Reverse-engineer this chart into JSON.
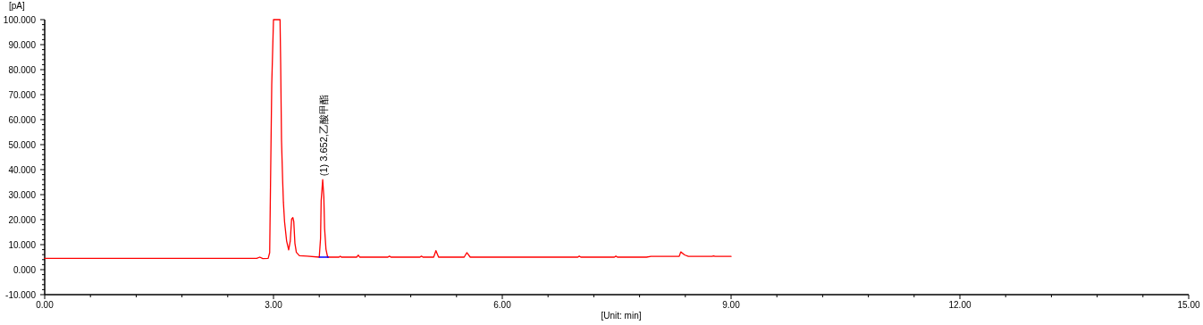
{
  "chart_data": {
    "type": "line",
    "xlabel": "[Unit: min]",
    "ylabel": "[pA]",
    "annotations": [
      {
        "text": "(1) 3.652,乙酸甲酯",
        "x": 3.652,
        "y": 36
      }
    ],
    "xlim": [
      0,
      15
    ],
    "ylim": [
      -10,
      100
    ],
    "xticks": [
      {
        "value": 0,
        "label": "0.00"
      },
      {
        "value": 0.6,
        "label": null
      },
      {
        "value": 1.2,
        "label": null
      },
      {
        "value": 1.8,
        "label": null
      },
      {
        "value": 2.4,
        "label": null
      },
      {
        "value": 3,
        "label": "3.00"
      },
      {
        "value": 3.6,
        "label": null
      },
      {
        "value": 4.2,
        "label": null
      },
      {
        "value": 4.8,
        "label": null
      },
      {
        "value": 5.4,
        "label": null
      },
      {
        "value": 6,
        "label": "6.00"
      },
      {
        "value": 6.6,
        "label": null
      },
      {
        "value": 7.2,
        "label": null
      },
      {
        "value": 7.8,
        "label": null
      },
      {
        "value": 8.4,
        "label": null
      },
      {
        "value": 9,
        "label": "9.00"
      },
      {
        "value": 9.6,
        "label": null
      },
      {
        "value": 10.2,
        "label": null
      },
      {
        "value": 10.8,
        "label": null
      },
      {
        "value": 11.4,
        "label": null
      },
      {
        "value": 12,
        "label": "12.00"
      },
      {
        "value": 12.6,
        "label": null
      },
      {
        "value": 13.2,
        "label": null
      },
      {
        "value": 13.8,
        "label": null
      },
      {
        "value": 14.4,
        "label": null
      },
      {
        "value": 15,
        "label": "15.00"
      }
    ],
    "yticks": [
      {
        "value": -10,
        "label": "-10.000"
      },
      {
        "value": -8,
        "label": null
      },
      {
        "value": -6,
        "label": null
      },
      {
        "value": -4,
        "label": null
      },
      {
        "value": -2,
        "label": null
      },
      {
        "value": 0,
        "label": "0.000"
      },
      {
        "value": 2,
        "label": null
      },
      {
        "value": 4,
        "label": null
      },
      {
        "value": 6,
        "label": null
      },
      {
        "value": 8,
        "label": null
      },
      {
        "value": 10,
        "label": "10.000"
      },
      {
        "value": 12,
        "label": null
      },
      {
        "value": 14,
        "label": null
      },
      {
        "value": 16,
        "label": null
      },
      {
        "value": 18,
        "label": null
      },
      {
        "value": 20,
        "label": "20.000"
      },
      {
        "value": 22,
        "label": null
      },
      {
        "value": 24,
        "label": null
      },
      {
        "value": 26,
        "label": null
      },
      {
        "value": 28,
        "label": null
      },
      {
        "value": 30,
        "label": "30.000"
      },
      {
        "value": 32,
        "label": null
      },
      {
        "value": 34,
        "label": null
      },
      {
        "value": 36,
        "label": null
      },
      {
        "value": 38,
        "label": null
      },
      {
        "value": 40,
        "label": "40.000"
      },
      {
        "value": 42,
        "label": null
      },
      {
        "value": 44,
        "label": null
      },
      {
        "value": 46,
        "label": null
      },
      {
        "value": 48,
        "label": null
      },
      {
        "value": 50,
        "label": "50.000"
      },
      {
        "value": 52,
        "label": null
      },
      {
        "value": 54,
        "label": null
      },
      {
        "value": 56,
        "label": null
      },
      {
        "value": 58,
        "label": null
      },
      {
        "value": 60,
        "label": "60.000"
      },
      {
        "value": 62,
        "label": null
      },
      {
        "value": 64,
        "label": null
      },
      {
        "value": 66,
        "label": null
      },
      {
        "value": 68,
        "label": null
      },
      {
        "value": 70,
        "label": "70.000"
      },
      {
        "value": 72,
        "label": null
      },
      {
        "value": 74,
        "label": null
      },
      {
        "value": 76,
        "label": null
      },
      {
        "value": 78,
        "label": null
      },
      {
        "value": 80,
        "label": "80.000"
      },
      {
        "value": 82,
        "label": null
      },
      {
        "value": 84,
        "label": null
      },
      {
        "value": 86,
        "label": null
      },
      {
        "value": 88,
        "label": null
      },
      {
        "value": 90,
        "label": "90.000"
      },
      {
        "value": 92,
        "label": null
      },
      {
        "value": 94,
        "label": null
      },
      {
        "value": 96,
        "label": null
      },
      {
        "value": 98,
        "label": null
      },
      {
        "value": 100,
        "label": "100.000"
      }
    ],
    "grid": false,
    "marker": "none",
    "line_style": "solid",
    "series": [
      {
        "color": "#ff0000",
        "x": [
          0,
          2.78,
          2.82,
          2.86,
          2.93,
          2.95,
          2.977,
          3.0,
          3.086,
          3.094,
          3.105,
          3.12,
          3.13,
          3.145,
          3.172,
          3.199,
          3.22,
          3.238,
          3.254,
          3.266,
          3.281,
          3.3,
          3.34,
          3.44,
          3.6,
          3.617,
          3.625,
          3.645,
          3.66,
          3.67,
          3.688,
          3.71,
          3.86,
          3.875,
          3.89,
          4.09,
          4.113,
          4.13,
          4.5,
          4.52,
          4.54,
          4.92,
          4.94,
          4.96,
          5.1,
          5.13,
          5.165,
          5.5,
          5.535,
          5.58,
          6.99,
          7.01,
          7.03,
          7.47,
          7.49,
          7.51,
          7.89,
          7.95,
          8.32,
          8.34,
          8.39,
          8.44,
          8.75,
          8.77,
          8.79,
          9.0
        ],
        "values": [
          4.5,
          4.5,
          5.0,
          4.4,
          4.5,
          6.8,
          73.9,
          100,
          100,
          82.8,
          51.9,
          35.8,
          27,
          19.2,
          11.5,
          7.9,
          11.5,
          20.3,
          20.8,
          19.2,
          10.5,
          6.9,
          5.6,
          5.4,
          5.0,
          12.5,
          27.5,
          36,
          29.2,
          16.5,
          8.2,
          5.0,
          5.0,
          5.4,
          5.0,
          5.0,
          5.8,
          5.0,
          5.0,
          5.4,
          5.0,
          5.0,
          5.4,
          5.0,
          5.0,
          7.6,
          5.0,
          5.0,
          6.8,
          5.0,
          5.0,
          5.4,
          5.0,
          5.0,
          5.4,
          5.0,
          5.0,
          5.3,
          5.3,
          7.1,
          5.9,
          5.3,
          5.3,
          5.5,
          5.3,
          5.3
        ]
      },
      {
        "color": "#0000ff",
        "x": [
          3.6,
          3.72
        ],
        "values": [
          5.0,
          5.0
        ]
      }
    ]
  }
}
